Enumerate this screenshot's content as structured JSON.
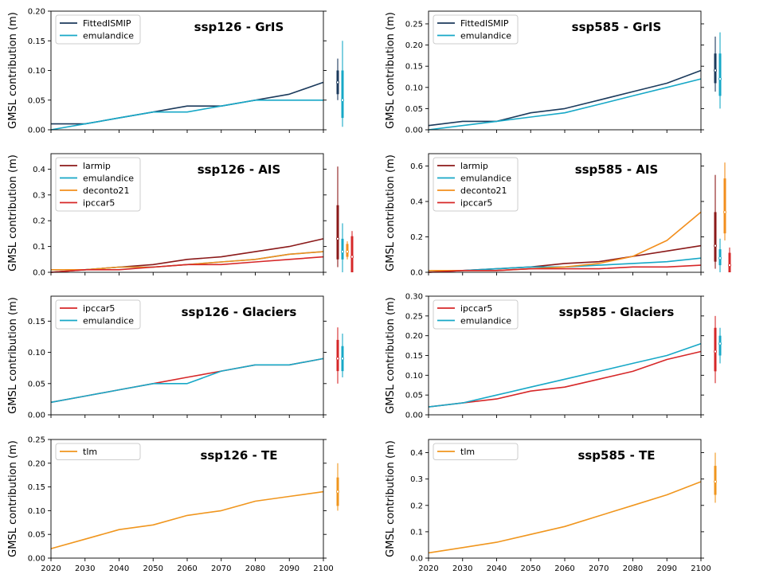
{
  "colors": {
    "FittedISMIP": "#1b3a5c",
    "emulandice": "#17a8c7",
    "larmip": "#8b1a1a",
    "deconto21": "#f28e1c",
    "ipccar5": "#d62728",
    "tlm": "#f0961e"
  },
  "chart_data": [
    {
      "type": "line",
      "title": "ssp126 - GrIS",
      "ylabel": "GMSL contribution (m)",
      "xlabel": "",
      "xlim": [
        2020,
        2100
      ],
      "ylim": [
        0,
        0.2
      ],
      "xticks": [
        2020,
        2030,
        2040,
        2050,
        2060,
        2070,
        2080,
        2090,
        2100
      ],
      "yticks": [
        0.0,
        0.05,
        0.1,
        0.15,
        0.2
      ],
      "ytick_labels": [
        "0.00",
        "0.05",
        "0.10",
        "0.15",
        "0.20"
      ],
      "x": [
        2020,
        2030,
        2040,
        2050,
        2060,
        2070,
        2080,
        2090,
        2100
      ],
      "series": [
        {
          "name": "FittedISMIP",
          "values": [
            0.01,
            0.01,
            0.02,
            0.03,
            0.04,
            0.04,
            0.05,
            0.06,
            0.08
          ]
        },
        {
          "name": "emulandice",
          "values": [
            0.0,
            0.01,
            0.02,
            0.03,
            0.03,
            0.04,
            0.05,
            0.05,
            0.05
          ]
        }
      ],
      "ranges": [
        {
          "name": "FittedISMIP",
          "median": 0.08,
          "likely": [
            0.06,
            0.1
          ],
          "very_likely": [
            0.05,
            0.12
          ]
        },
        {
          "name": "emulandice",
          "median": 0.05,
          "likely": [
            0.02,
            0.1
          ],
          "very_likely": [
            0.005,
            0.15
          ]
        }
      ],
      "legend": "top-left"
    },
    {
      "type": "line",
      "title": "ssp585 - GrIS",
      "ylabel": "GMSL contribution (m)",
      "xlabel": "",
      "xlim": [
        2020,
        2100
      ],
      "ylim": [
        0,
        0.28
      ],
      "xticks": [
        2020,
        2030,
        2040,
        2050,
        2060,
        2070,
        2080,
        2090,
        2100
      ],
      "yticks": [
        0.0,
        0.05,
        0.1,
        0.15,
        0.2,
        0.25
      ],
      "ytick_labels": [
        "0.00",
        "0.05",
        "0.10",
        "0.15",
        "0.20",
        "0.25"
      ],
      "x": [
        2020,
        2030,
        2040,
        2050,
        2060,
        2070,
        2080,
        2090,
        2100
      ],
      "series": [
        {
          "name": "FittedISMIP",
          "values": [
            0.01,
            0.02,
            0.02,
            0.04,
            0.05,
            0.07,
            0.09,
            0.11,
            0.14
          ]
        },
        {
          "name": "emulandice",
          "values": [
            0.0,
            0.01,
            0.02,
            0.03,
            0.04,
            0.06,
            0.08,
            0.1,
            0.12
          ]
        }
      ],
      "ranges": [
        {
          "name": "FittedISMIP",
          "median": 0.14,
          "likely": [
            0.11,
            0.18
          ],
          "very_likely": [
            0.09,
            0.22
          ]
        },
        {
          "name": "emulandice",
          "median": 0.12,
          "likely": [
            0.08,
            0.18
          ],
          "very_likely": [
            0.05,
            0.23
          ]
        }
      ],
      "legend": "top-left"
    },
    {
      "type": "line",
      "title": "ssp126 - AIS",
      "ylabel": "GMSL contribution (m)",
      "xlabel": "",
      "xlim": [
        2020,
        2100
      ],
      "ylim": [
        0,
        0.46
      ],
      "xticks": [
        2020,
        2030,
        2040,
        2050,
        2060,
        2070,
        2080,
        2090,
        2100
      ],
      "yticks": [
        0.0,
        0.1,
        0.2,
        0.3,
        0.4
      ],
      "ytick_labels": [
        "0.0",
        "0.1",
        "0.2",
        "0.3",
        "0.4"
      ],
      "x": [
        2020,
        2030,
        2040,
        2050,
        2060,
        2070,
        2080,
        2090,
        2100
      ],
      "series": [
        {
          "name": "larmip",
          "values": [
            0.0,
            0.01,
            0.02,
            0.03,
            0.05,
            0.06,
            0.08,
            0.1,
            0.13
          ]
        },
        {
          "name": "emulandice",
          "values": [
            0.01,
            0.01,
            0.02,
            0.02,
            0.03,
            0.04,
            0.05,
            0.07,
            0.08
          ]
        },
        {
          "name": "deconto21",
          "values": [
            0.01,
            0.01,
            0.02,
            0.02,
            0.03,
            0.04,
            0.05,
            0.07,
            0.08
          ]
        },
        {
          "name": "ipccar5",
          "values": [
            0.0,
            0.01,
            0.01,
            0.02,
            0.03,
            0.03,
            0.04,
            0.05,
            0.06
          ]
        }
      ],
      "ranges": [
        {
          "name": "larmip",
          "median": 0.13,
          "likely": [
            0.05,
            0.26
          ],
          "very_likely": [
            0.02,
            0.41
          ]
        },
        {
          "name": "emulandice",
          "median": 0.08,
          "likely": [
            0.05,
            0.13
          ],
          "very_likely": [
            0.0,
            0.19
          ]
        },
        {
          "name": "deconto21",
          "median": 0.08,
          "likely": [
            0.06,
            0.11
          ],
          "very_likely": [
            0.05,
            0.12
          ]
        },
        {
          "name": "ipccar5",
          "median": 0.06,
          "likely": [
            0.0,
            0.14
          ],
          "very_likely": [
            0.0,
            0.16
          ]
        }
      ],
      "legend": "top-left"
    },
    {
      "type": "line",
      "title": "ssp585 - AIS",
      "ylabel": "GMSL contribution (m)",
      "xlabel": "",
      "xlim": [
        2020,
        2100
      ],
      "ylim": [
        0,
        0.67
      ],
      "xticks": [
        2020,
        2030,
        2040,
        2050,
        2060,
        2070,
        2080,
        2090,
        2100
      ],
      "yticks": [
        0.0,
        0.2,
        0.4,
        0.6
      ],
      "ytick_labels": [
        "0.0",
        "0.2",
        "0.4",
        "0.6"
      ],
      "x": [
        2020,
        2030,
        2040,
        2050,
        2060,
        2070,
        2080,
        2090,
        2100
      ],
      "series": [
        {
          "name": "larmip",
          "values": [
            0.0,
            0.01,
            0.02,
            0.03,
            0.05,
            0.06,
            0.09,
            0.12,
            0.15
          ]
        },
        {
          "name": "emulandice",
          "values": [
            0.01,
            0.01,
            0.02,
            0.03,
            0.03,
            0.04,
            0.05,
            0.06,
            0.08
          ]
        },
        {
          "name": "deconto21",
          "values": [
            0.01,
            0.01,
            0.01,
            0.02,
            0.03,
            0.05,
            0.09,
            0.18,
            0.34
          ]
        },
        {
          "name": "ipccar5",
          "values": [
            0.0,
            0.01,
            0.01,
            0.02,
            0.02,
            0.02,
            0.03,
            0.03,
            0.04
          ]
        }
      ],
      "ranges": [
        {
          "name": "larmip",
          "median": 0.15,
          "likely": [
            0.06,
            0.34
          ],
          "very_likely": [
            0.02,
            0.55
          ]
        },
        {
          "name": "emulandice",
          "median": 0.08,
          "likely": [
            0.04,
            0.13
          ],
          "very_likely": [
            0.0,
            0.19
          ]
        },
        {
          "name": "deconto21",
          "median": 0.34,
          "likely": [
            0.22,
            0.53
          ],
          "very_likely": [
            0.18,
            0.62
          ]
        },
        {
          "name": "ipccar5",
          "median": 0.04,
          "likely": [
            0.0,
            0.11
          ],
          "very_likely": [
            0.0,
            0.14
          ]
        }
      ],
      "legend": "top-left"
    },
    {
      "type": "line",
      "title": "ssp126 - Glaciers",
      "ylabel": "GMSL contribution (m)",
      "xlabel": "",
      "xlim": [
        2020,
        2100
      ],
      "ylim": [
        0,
        0.19
      ],
      "xticks": [
        2020,
        2030,
        2040,
        2050,
        2060,
        2070,
        2080,
        2090,
        2100
      ],
      "yticks": [
        0.0,
        0.05,
        0.1,
        0.15
      ],
      "ytick_labels": [
        "0.00",
        "0.05",
        "0.10",
        "0.15"
      ],
      "x": [
        2020,
        2030,
        2040,
        2050,
        2060,
        2070,
        2080,
        2090,
        2100
      ],
      "series": [
        {
          "name": "ipccar5",
          "values": [
            0.02,
            0.03,
            0.04,
            0.05,
            0.06,
            0.07,
            0.08,
            0.08,
            0.09
          ]
        },
        {
          "name": "emulandice",
          "values": [
            0.02,
            0.03,
            0.04,
            0.05,
            0.05,
            0.07,
            0.08,
            0.08,
            0.09
          ]
        }
      ],
      "ranges": [
        {
          "name": "ipccar5",
          "median": 0.09,
          "likely": [
            0.07,
            0.12
          ],
          "very_likely": [
            0.05,
            0.14
          ]
        },
        {
          "name": "emulandice",
          "median": 0.09,
          "likely": [
            0.07,
            0.11
          ],
          "very_likely": [
            0.06,
            0.13
          ]
        }
      ],
      "legend": "top-left"
    },
    {
      "type": "line",
      "title": "ssp585 - Glaciers",
      "ylabel": "GMSL contribution (m)",
      "xlabel": "",
      "xlim": [
        2020,
        2100
      ],
      "ylim": [
        0,
        0.3
      ],
      "xticks": [
        2020,
        2030,
        2040,
        2050,
        2060,
        2070,
        2080,
        2090,
        2100
      ],
      "yticks": [
        0.0,
        0.05,
        0.1,
        0.15,
        0.2,
        0.25,
        0.3
      ],
      "ytick_labels": [
        "0.00",
        "0.05",
        "0.10",
        "0.15",
        "0.20",
        "0.25",
        "0.30"
      ],
      "x": [
        2020,
        2030,
        2040,
        2050,
        2060,
        2070,
        2080,
        2090,
        2100
      ],
      "series": [
        {
          "name": "ipccar5",
          "values": [
            0.02,
            0.03,
            0.04,
            0.06,
            0.07,
            0.09,
            0.11,
            0.14,
            0.16
          ]
        },
        {
          "name": "emulandice",
          "values": [
            0.02,
            0.03,
            0.05,
            0.07,
            0.09,
            0.11,
            0.13,
            0.15,
            0.18
          ]
        }
      ],
      "ranges": [
        {
          "name": "ipccar5",
          "median": 0.16,
          "likely": [
            0.11,
            0.22
          ],
          "very_likely": [
            0.08,
            0.25
          ]
        },
        {
          "name": "emulandice",
          "median": 0.18,
          "likely": [
            0.15,
            0.2
          ],
          "very_likely": [
            0.13,
            0.22
          ]
        }
      ],
      "legend": "top-left"
    },
    {
      "type": "line",
      "title": "ssp126 - TE",
      "ylabel": "GMSL contribution (m)",
      "xlabel": "",
      "xlim": [
        2020,
        2100
      ],
      "ylim": [
        0,
        0.25
      ],
      "xticks": [
        2020,
        2030,
        2040,
        2050,
        2060,
        2070,
        2080,
        2090,
        2100
      ],
      "yticks": [
        0.0,
        0.05,
        0.1,
        0.15,
        0.2,
        0.25
      ],
      "ytick_labels": [
        "0.00",
        "0.05",
        "0.10",
        "0.15",
        "0.20",
        "0.25"
      ],
      "x": [
        2020,
        2030,
        2040,
        2050,
        2060,
        2070,
        2080,
        2090,
        2100
      ],
      "series": [
        {
          "name": "tlm",
          "values": [
            0.02,
            0.04,
            0.06,
            0.07,
            0.09,
            0.1,
            0.12,
            0.13,
            0.14
          ]
        }
      ],
      "ranges": [
        {
          "name": "tlm",
          "median": 0.14,
          "likely": [
            0.11,
            0.17
          ],
          "very_likely": [
            0.1,
            0.2
          ]
        }
      ],
      "legend": "top-left"
    },
    {
      "type": "line",
      "title": "ssp585 - TE",
      "ylabel": "GMSL contribution (m)",
      "xlabel": "",
      "xlim": [
        2020,
        2100
      ],
      "ylim": [
        0,
        0.45
      ],
      "xticks": [
        2020,
        2030,
        2040,
        2050,
        2060,
        2070,
        2080,
        2090,
        2100
      ],
      "yticks": [
        0.0,
        0.1,
        0.2,
        0.3,
        0.4
      ],
      "ytick_labels": [
        "0.0",
        "0.1",
        "0.2",
        "0.3",
        "0.4"
      ],
      "x": [
        2020,
        2030,
        2040,
        2050,
        2060,
        2070,
        2080,
        2090,
        2100
      ],
      "series": [
        {
          "name": "tlm",
          "values": [
            0.02,
            0.04,
            0.06,
            0.09,
            0.12,
            0.16,
            0.2,
            0.24,
            0.29
          ]
        }
      ],
      "ranges": [
        {
          "name": "tlm",
          "median": 0.29,
          "likely": [
            0.24,
            0.35
          ],
          "very_likely": [
            0.21,
            0.4
          ]
        }
      ],
      "legend": "top-left"
    }
  ]
}
